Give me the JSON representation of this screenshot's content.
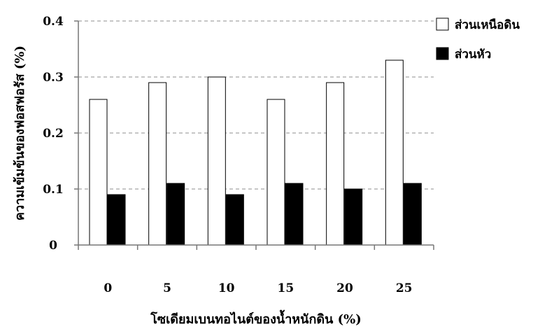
{
  "chart_data": {
    "type": "bar",
    "categories": [
      "0",
      "5",
      "10",
      "15",
      "20",
      "25"
    ],
    "series": [
      {
        "name": "ส่วนเหนือดิน",
        "values": [
          0.26,
          0.29,
          0.3,
          0.26,
          0.29,
          0.33
        ],
        "color": "#ffffff"
      },
      {
        "name": "ส่วนหัว",
        "values": [
          0.09,
          0.11,
          0.09,
          0.11,
          0.1,
          0.11
        ],
        "color": "#000000"
      }
    ],
    "xlabel": "โซเดียมเบนทอไนต์ของน้ำหนักดิน (%)",
    "ylabel": "ความเข้มข้นของฟอสฟอรัส (%)",
    "ylim": [
      0,
      0.4
    ],
    "yticks": [
      "0",
      "0.1",
      "0.2",
      "0.3",
      "0.4"
    ],
    "grid": true,
    "legend_position": "top-right"
  }
}
